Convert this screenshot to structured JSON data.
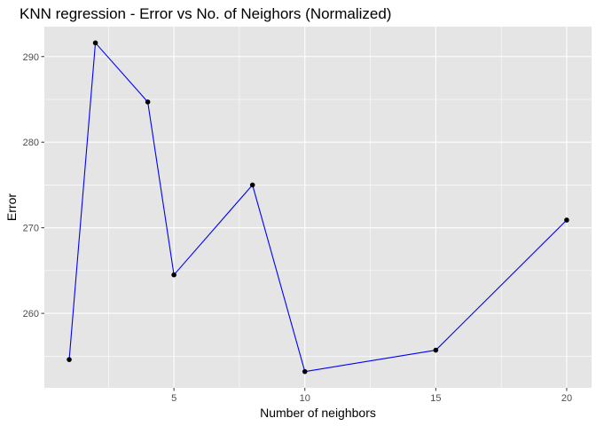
{
  "chart_data": {
    "type": "line",
    "title": "KNN regression - Error vs No. of Neighors (Normalized)",
    "xlabel": "Number of neighbors",
    "ylabel": "Error",
    "x": [
      1,
      2,
      4,
      5,
      8,
      10,
      15,
      20
    ],
    "series": [
      {
        "values": [
          254.6,
          291.6,
          284.7,
          264.5,
          275.0,
          253.2,
          255.7,
          270.9
        ],
        "line_color": "#0000ff",
        "point_color": "#000000",
        "show_points": true
      }
    ],
    "xlim": [
      0.05,
      20.95
    ],
    "ylim": [
      251.3,
      293.5
    ],
    "x_ticks": [
      5,
      10,
      15,
      20
    ],
    "x_minor_ticks": [
      2.5,
      7.5,
      12.5,
      17.5
    ],
    "y_ticks": [
      260,
      270,
      280,
      290
    ],
    "y_minor_ticks": [
      255,
      265,
      275,
      285
    ],
    "grid": true,
    "legend": "none",
    "panel_background": "#e5e5e5",
    "grid_color": "#ffffff"
  }
}
